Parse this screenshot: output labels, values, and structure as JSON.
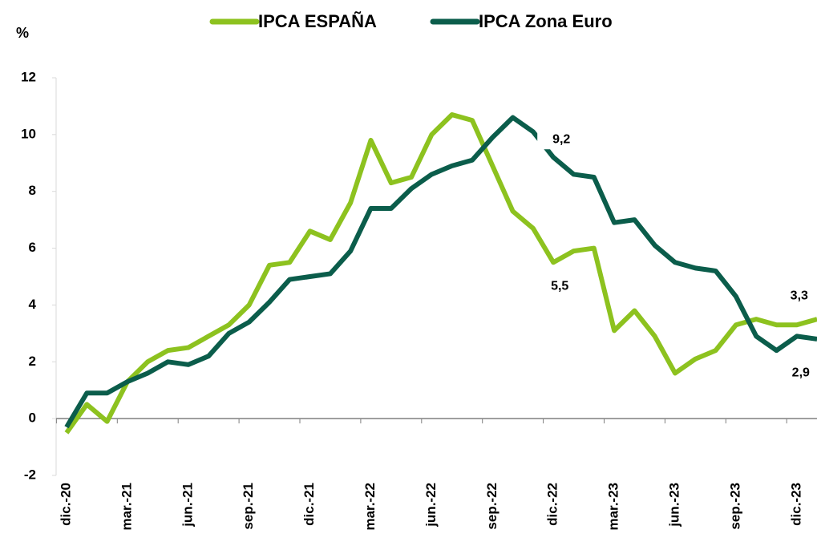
{
  "chart_data": {
    "type": "line",
    "y_label": "%",
    "categories": [
      "dic.-20",
      null,
      null,
      "mar.-21",
      null,
      null,
      "jun.-21",
      null,
      null,
      "sep.-21",
      null,
      null,
      "dic.-21",
      null,
      null,
      "mar.-22",
      null,
      null,
      "jun.-22",
      null,
      null,
      "sep.-22",
      null,
      null,
      "dic.-22",
      null,
      null,
      "mar.-23",
      null,
      null,
      "jun.-23",
      null,
      null,
      "sep.-23",
      null,
      null,
      "dic.-23",
      null
    ],
    "series": [
      {
        "name": "IPCA ESPAÑA",
        "color": "#8dc21f",
        "values": [
          -0.5,
          0.5,
          -0.1,
          1.3,
          2.0,
          2.4,
          2.5,
          2.9,
          3.3,
          4.0,
          5.4,
          5.5,
          6.6,
          6.3,
          7.6,
          9.8,
          8.3,
          8.5,
          10.0,
          10.7,
          10.5,
          8.9,
          7.3,
          6.7,
          5.5,
          5.9,
          6.0,
          3.1,
          3.8,
          2.9,
          1.6,
          2.1,
          2.4,
          3.3,
          3.5,
          3.3,
          3.3,
          3.5
        ],
        "value_labels": [
          null,
          null,
          null,
          null,
          null,
          null,
          null,
          null,
          null,
          null,
          null,
          null,
          null,
          null,
          null,
          null,
          null,
          null,
          null,
          null,
          null,
          null,
          null,
          null,
          "5,5",
          null,
          null,
          null,
          null,
          null,
          null,
          null,
          null,
          null,
          null,
          null,
          "3,3",
          null
        ]
      },
      {
        "name": "IPCA Zona Euro",
        "color": "#0b5d4b",
        "values": [
          -0.3,
          0.9,
          0.9,
          1.3,
          1.6,
          2.0,
          1.9,
          2.2,
          3.0,
          3.4,
          4.1,
          4.9,
          5.0,
          5.1,
          5.9,
          7.4,
          7.4,
          8.1,
          8.6,
          8.9,
          9.1,
          9.9,
          10.6,
          10.1,
          9.2,
          8.6,
          8.5,
          6.9,
          7.0,
          6.1,
          5.5,
          5.3,
          5.2,
          4.3,
          2.9,
          2.4,
          2.9,
          2.8
        ],
        "value_labels": [
          null,
          null,
          null,
          null,
          null,
          null,
          null,
          null,
          null,
          null,
          null,
          null,
          null,
          null,
          null,
          null,
          null,
          null,
          null,
          null,
          null,
          null,
          null,
          null,
          "9,2",
          null,
          null,
          null,
          null,
          null,
          null,
          null,
          null,
          null,
          null,
          null,
          "2,9",
          null
        ]
      }
    ],
    "ylim": [
      -2,
      12
    ],
    "yticks": [
      -2,
      0,
      2,
      4,
      6,
      8,
      10,
      12
    ]
  }
}
